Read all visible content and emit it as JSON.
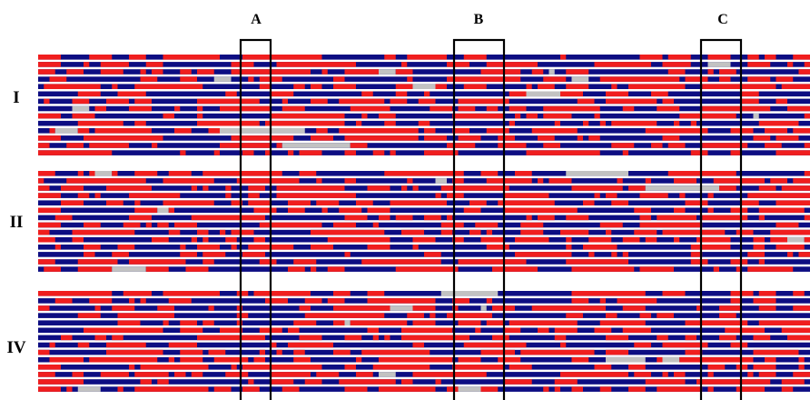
{
  "figure": {
    "column_markers": [
      "A",
      "B",
      "C"
    ],
    "groups": [
      {
        "label": "I",
        "rows": 14
      },
      {
        "label": "II",
        "rows": 14
      },
      {
        "label": "IV",
        "rows": 14
      }
    ],
    "colors": {
      "state_a": "#f01e1e",
      "state_b": "#0d0d82",
      "missing": "#c2c2c2",
      "box": "#000000",
      "background": "#ffffff"
    },
    "legend": []
  }
}
